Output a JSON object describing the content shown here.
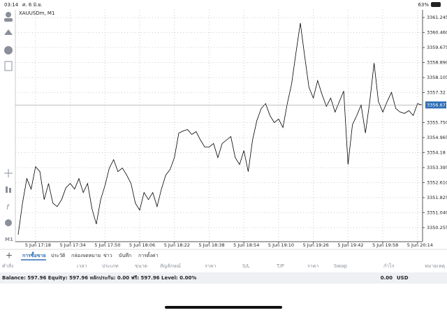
{
  "status_bar": {
    "time": "03:14",
    "date": "ศ. 6 มิ.ย.",
    "battery": "63%"
  },
  "toolbar": {
    "timeframe": "M1"
  },
  "chart_data": {
    "type": "line",
    "title": "XAUUSDm, M1",
    "color": "#000000",
    "grid": true,
    "categories": [
      null,
      null,
      null,
      null,
      "5 Jun 17:18",
      null,
      null,
      null,
      null,
      null,
      null,
      null,
      "5 Jun 17:34",
      null,
      null,
      null,
      null,
      null,
      null,
      null,
      "5 Jun 17:50",
      null,
      null,
      null,
      null,
      null,
      null,
      null,
      "5 Jun 18:06",
      null,
      null,
      null,
      null,
      null,
      null,
      null,
      "5 Jun 18:22",
      null,
      null,
      null,
      null,
      null,
      null,
      null,
      "5 Jun 18:38",
      null,
      null,
      null,
      null,
      null,
      null,
      null,
      "5 Jun 18:54",
      null,
      null,
      null,
      null,
      null,
      null,
      null,
      "5 Jun 19:10",
      null,
      null,
      null,
      null,
      null,
      null,
      null,
      "5 Jun 19:26",
      null,
      null,
      null,
      null,
      null,
      null,
      null,
      "5 Jun 19:42",
      null,
      null,
      null,
      null,
      null,
      null,
      null,
      "5 Jun 19:58",
      null,
      null,
      null,
      null,
      null,
      null,
      null,
      "5 Jun 20:14",
      null
    ],
    "values": [
      3349.89,
      3351.538,
      3352.82,
      3352.271,
      3353.443,
      3353.186,
      3351.721,
      3352.564,
      3351.538,
      3351.355,
      3351.721,
      3352.344,
      3352.564,
      3352.271,
      3352.82,
      3352.087,
      3352.564,
      3351.245,
      3350.439,
      3351.721,
      3352.454,
      3353.37,
      3353.809,
      3353.186,
      3353.37,
      3353.003,
      3352.564,
      3351.538,
      3351.172,
      3352.087,
      3351.721,
      3352.087,
      3351.355,
      3352.271,
      3353.003,
      3353.296,
      3353.919,
      3355.201,
      3355.311,
      3355.384,
      3355.128,
      3355.274,
      3354.835,
      3354.468,
      3354.468,
      3354.652,
      3353.919,
      3354.652,
      3354.835,
      3355.018,
      3353.919,
      3353.553,
      3354.285,
      3353.186,
      3354.835,
      3355.86,
      3356.483,
      3356.74,
      3356.117,
      3355.75,
      3355.934,
      3355.494,
      3356.74,
      3357.765,
      3359.413,
      3360.952,
      3359.23,
      3357.582,
      3357.033,
      3357.948,
      3357.216,
      3356.593,
      3357.033,
      3356.3,
      3356.849,
      3357.399,
      3353.553,
      3355.641,
      3356.117,
      3356.666,
      3355.201,
      3356.849,
      3358.864,
      3356.849,
      3356.3,
      3356.849,
      3357.326,
      3356.483,
      3356.3,
      3356.227,
      3356.373,
      3356.117,
      3356.74,
      3356.671
    ],
    "ylim": [
      3349.52,
      3361.65
    ],
    "yticks": [
      3350.255,
      {
        "value": 3351.04,
        "label": "3351.040"
      },
      3351.825,
      {
        "value": 3352.61,
        "label": "3352.610"
      },
      3353.395,
      3354.18,
      3354.965,
      {
        "value": 3355.75,
        "label": "3355.750"
      },
      3357.32,
      3358.105,
      {
        "value": 3358.89,
        "label": "3358.890"
      },
      3359.675,
      {
        "value": 3360.46,
        "label": "3360.460"
      },
      3361.245
    ],
    "current_price": 3356.671
  },
  "tabs": [
    "การซื้อขาย",
    "ประวัติ",
    "กล่องจดหมาย",
    "ข่าว",
    "บันทึก",
    "การตั้งค่า"
  ],
  "table_header": [
    "คำสั่ง",
    "เวลา",
    "ประเภท",
    "ขนาด",
    "สัญลักษณ์",
    "ราคา",
    "S/L",
    "T/P",
    "ราคา",
    "Swap",
    "กำไร",
    "หมายเหตุ"
  ],
  "account": {
    "summary": "Balance: 597.96 Equity: 597.96 หลักประกัน: 0.00 ฟรี: 597.96 Level: 0.00%",
    "profit": "0.00",
    "currency": "USD"
  }
}
